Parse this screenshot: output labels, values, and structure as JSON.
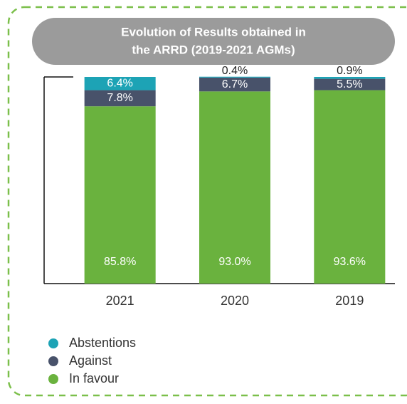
{
  "chart_data": {
    "type": "stacked_bar",
    "title": [
      "Evolution of Results obtained in",
      "the ARRD (2019-2021 AGMs)"
    ],
    "categories": [
      "2021",
      "2020",
      "2019"
    ],
    "series": [
      {
        "name": "In favour",
        "color": "#6ab23e",
        "values": [
          85.8,
          93.0,
          93.6
        ],
        "value_labels": [
          "85.8%",
          "93.0%",
          "93.6%"
        ]
      },
      {
        "name": "Against",
        "color": "#48526a",
        "values": [
          7.8,
          6.7,
          5.5
        ],
        "value_labels": [
          "7.8%",
          "6.7%",
          "5.5%"
        ]
      },
      {
        "name": "Abstentions",
        "color": "#1da3b5",
        "values": [
          6.4,
          0.4,
          0.9
        ],
        "value_labels": [
          "6.4%",
          "0.4%",
          "0.9%"
        ]
      }
    ],
    "ylim": [
      0,
      100
    ]
  }
}
